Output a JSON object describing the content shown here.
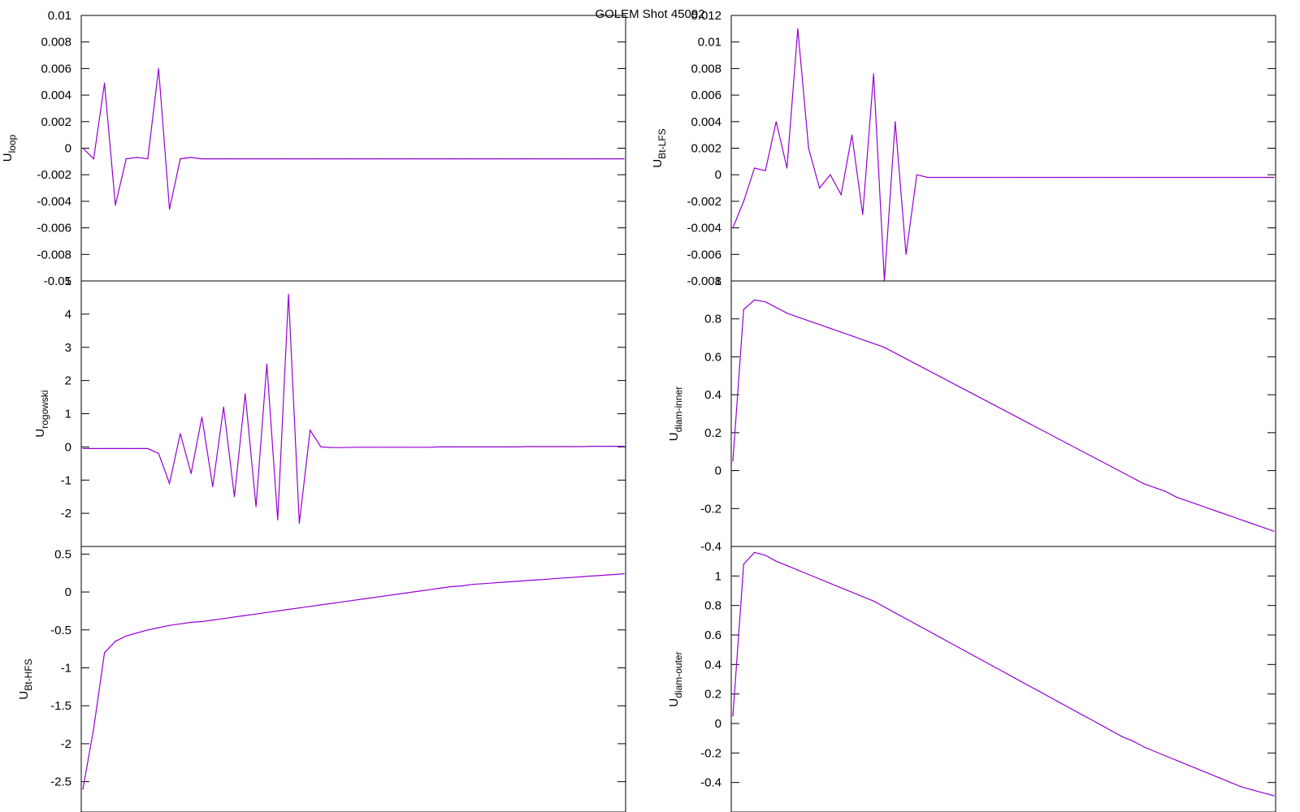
{
  "title": "GOLEM Shot 45092",
  "colors": {
    "series": "#9400D3",
    "axes": "#000000",
    "background": "#ffffff"
  },
  "chart_data": [
    {
      "type": "line",
      "ylabel": {
        "main": "U",
        "sub": "loop"
      },
      "ylim": [
        -0.01,
        0.01
      ],
      "yticks": [
        -0.01,
        -0.008,
        -0.006,
        -0.004,
        -0.002,
        0,
        0.002,
        0.004,
        0.006,
        0.008,
        0.01
      ],
      "yticklabels": [
        "-0.01",
        "-0.008",
        "-0.006",
        "-0.004",
        "-0.002",
        "0",
        "0.002",
        "0.004",
        "0.006",
        "0.008",
        "0.01"
      ],
      "grid": false,
      "series": [
        {
          "values": [
            0,
            -0.0008,
            0.0049,
            -0.0043,
            -0.0008,
            -0.0007,
            -0.0008,
            0.006,
            -0.0046,
            -0.0008,
            -0.0007,
            -0.0008,
            -0.0008,
            -0.0008,
            -0.0008,
            -0.0008,
            -0.0008,
            -0.0008,
            -0.0008,
            -0.0008,
            -0.0008,
            -0.0008,
            -0.0008,
            -0.0008,
            -0.0008,
            -0.0008,
            -0.0008,
            -0.0008,
            -0.0008,
            -0.0008,
            -0.0008,
            -0.0008,
            -0.0008,
            -0.0008,
            -0.0008,
            -0.0008,
            -0.0008,
            -0.0008,
            -0.0008,
            -0.0008,
            -0.0008,
            -0.0008,
            -0.0008,
            -0.0008,
            -0.0008,
            -0.0008,
            -0.0008,
            -0.0008,
            -0.0008,
            -0.0008,
            -0.0008
          ]
        }
      ]
    },
    {
      "type": "line",
      "ylabel": {
        "main": "U",
        "sub": "Bt-LFS"
      },
      "ylim": [
        -0.008,
        0.012
      ],
      "yticks": [
        -0.008,
        -0.006,
        -0.004,
        -0.002,
        0,
        0.002,
        0.004,
        0.006,
        0.008,
        0.01,
        0.012
      ],
      "yticklabels": [
        "-0.008",
        "-0.006",
        "-0.004",
        "-0.002",
        "0",
        "0.002",
        "0.004",
        "0.006",
        "0.008",
        "0.01",
        "0.012"
      ],
      "grid": false,
      "series": [
        {
          "values": [
            -0.004,
            -0.002,
            0.0005,
            0.0003,
            0.004,
            0.0005,
            0.011,
            0.002,
            -0.001,
            0.0,
            -0.0015,
            0.003,
            -0.003,
            0.0076,
            -0.008,
            0.004,
            -0.006,
            0.0,
            -0.0002,
            -0.0002,
            -0.0002,
            -0.0002,
            -0.0002,
            -0.0002,
            -0.0002,
            -0.0002,
            -0.0002,
            -0.0002,
            -0.0002,
            -0.0002,
            -0.0002,
            -0.0002,
            -0.0002,
            -0.0002,
            -0.0002,
            -0.0002,
            -0.0002,
            -0.0002,
            -0.0002,
            -0.0002,
            -0.0002,
            -0.0002,
            -0.0002,
            -0.0002,
            -0.0002,
            -0.0002,
            -0.0002,
            -0.0002,
            -0.0002,
            -0.0002,
            -0.0002
          ]
        }
      ]
    },
    {
      "type": "line",
      "ylabel": {
        "main": "U",
        "sub": "rogowski"
      },
      "ylim": [
        -3,
        5
      ],
      "yticks": [
        -2,
        -1,
        0,
        1,
        2,
        3,
        4,
        5
      ],
      "yticklabels": [
        "-2",
        "-1",
        "0",
        "1",
        "2",
        "3",
        "4",
        "5"
      ],
      "grid": false,
      "series": [
        {
          "values": [
            -0.05,
            -0.05,
            -0.05,
            -0.05,
            -0.05,
            -0.05,
            -0.05,
            -0.2,
            -1.1,
            0.4,
            -0.8,
            0.9,
            -1.2,
            1.2,
            -1.5,
            1.6,
            -1.8,
            2.5,
            -2.2,
            4.6,
            -2.3,
            0.5,
            0.0,
            -0.02,
            -0.02,
            -0.01,
            -0.01,
            -0.01,
            -0.01,
            -0.01,
            -0.01,
            -0.01,
            -0.01,
            0.0,
            0.0,
            0.0,
            0.0,
            0.0,
            0.0,
            0.0,
            0.0,
            0.01,
            0.01,
            0.01,
            0.01,
            0.01,
            0.01,
            0.02,
            0.02,
            0.02,
            0.02
          ]
        }
      ]
    },
    {
      "type": "line",
      "ylabel": {
        "main": "U",
        "sub": "diam-inner"
      },
      "ylim": [
        -0.4,
        1.0
      ],
      "yticks": [
        -0.4,
        -0.2,
        0,
        0.2,
        0.4,
        0.6,
        0.8,
        1
      ],
      "yticklabels": [
        "-0.4",
        "-0.2",
        "0",
        "0.2",
        "0.4",
        "0.6",
        "0.8",
        "1"
      ],
      "grid": false,
      "series": [
        {
          "values": [
            0.05,
            0.85,
            0.9,
            0.89,
            0.86,
            0.83,
            0.81,
            0.79,
            0.77,
            0.75,
            0.73,
            0.71,
            0.69,
            0.67,
            0.65,
            0.62,
            0.59,
            0.56,
            0.53,
            0.5,
            0.47,
            0.44,
            0.41,
            0.38,
            0.35,
            0.32,
            0.29,
            0.26,
            0.23,
            0.2,
            0.17,
            0.14,
            0.11,
            0.08,
            0.05,
            0.02,
            -0.01,
            -0.04,
            -0.07,
            -0.09,
            -0.11,
            -0.14,
            -0.16,
            -0.18,
            -0.2,
            -0.22,
            -0.24,
            -0.26,
            -0.28,
            -0.3,
            -0.32
          ]
        }
      ]
    },
    {
      "type": "line",
      "ylabel": {
        "main": "U",
        "sub": "Bt-HFS"
      },
      "ylim": [
        -2.9,
        0.6
      ],
      "yticks": [
        -2.5,
        -2,
        -1.5,
        -1,
        -0.5,
        0,
        0.5
      ],
      "yticklabels": [
        "-2.5",
        "-2",
        "-1.5",
        "-1",
        "-0.5",
        "0",
        "0.5"
      ],
      "grid": false,
      "series": [
        {
          "values": [
            -2.6,
            -1.8,
            -0.8,
            -0.65,
            -0.58,
            -0.54,
            -0.5,
            -0.47,
            -0.44,
            -0.42,
            -0.4,
            -0.39,
            -0.37,
            -0.35,
            -0.33,
            -0.31,
            -0.29,
            -0.27,
            -0.25,
            -0.23,
            -0.21,
            -0.19,
            -0.17,
            -0.15,
            -0.13,
            -0.11,
            -0.09,
            -0.07,
            -0.05,
            -0.03,
            -0.01,
            0.01,
            0.03,
            0.05,
            0.07,
            0.08,
            0.1,
            0.11,
            0.12,
            0.13,
            0.14,
            0.15,
            0.16,
            0.17,
            0.18,
            0.19,
            0.2,
            0.21,
            0.22,
            0.23,
            0.24
          ]
        }
      ]
    },
    {
      "type": "line",
      "ylabel": {
        "main": "U",
        "sub": "diam-outer"
      },
      "ylim": [
        -0.6,
        1.2
      ],
      "yticks": [
        -0.4,
        -0.2,
        0,
        0.2,
        0.4,
        0.6,
        0.8,
        1
      ],
      "yticklabels": [
        "-0.4",
        "-0.2",
        "0",
        "0.2",
        "0.4",
        "0.6",
        "0.8",
        "1"
      ],
      "grid": false,
      "series": [
        {
          "values": [
            0.05,
            1.08,
            1.16,
            1.14,
            1.1,
            1.07,
            1.04,
            1.01,
            0.98,
            0.95,
            0.92,
            0.89,
            0.86,
            0.83,
            0.79,
            0.75,
            0.71,
            0.67,
            0.63,
            0.59,
            0.55,
            0.51,
            0.47,
            0.43,
            0.39,
            0.35,
            0.31,
            0.27,
            0.23,
            0.19,
            0.15,
            0.11,
            0.07,
            0.03,
            -0.01,
            -0.05,
            -0.09,
            -0.12,
            -0.16,
            -0.19,
            -0.22,
            -0.25,
            -0.28,
            -0.31,
            -0.34,
            -0.37,
            -0.4,
            -0.43,
            -0.45,
            -0.47,
            -0.49
          ]
        }
      ]
    }
  ]
}
